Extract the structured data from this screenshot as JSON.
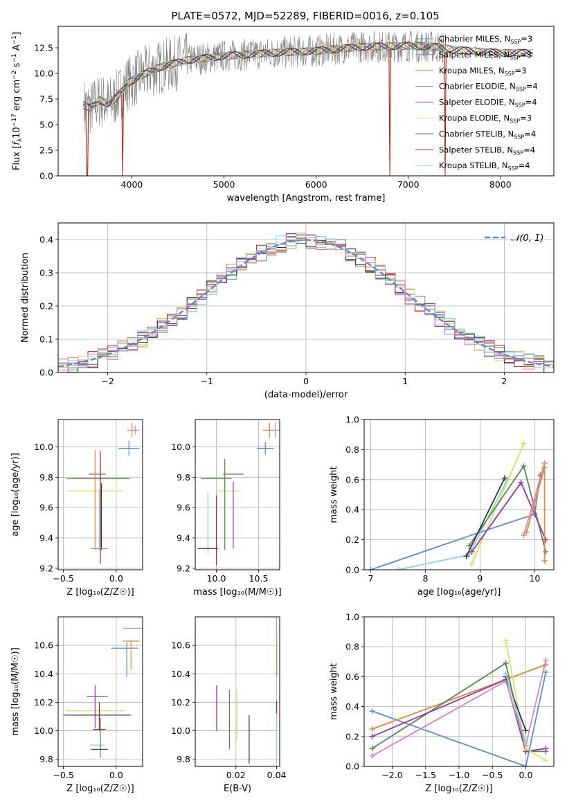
{
  "figure_title": "PLATE=0572, MJD=52289, FIBERID=0016, z=0.105",
  "chart_data": [
    {
      "type": "line",
      "panel": "spectrum",
      "xlabel": "wavelength [Angstrom, rest frame]",
      "ylabel_parts": [
        "Flux [",
        "f",
        "λ",
        "10",
        "−17",
        " erg cm",
        "−2",
        " s",
        "−1",
        " A",
        "−1",
        "]"
      ],
      "xlim": [
        3200,
        8580
      ],
      "ylim": [
        0,
        14.6
      ],
      "xticks": [
        4000,
        5000,
        6000,
        7000,
        8000
      ],
      "yticks": [
        0.0,
        2.5,
        5.0,
        7.5,
        10.0,
        12.5
      ],
      "continuum_x": [
        3450,
        3550,
        3650,
        3750,
        3850,
        3950,
        4100,
        4300,
        4600,
        5000,
        5500,
        6000,
        6500,
        7000,
        7300,
        7500,
        8000,
        8350
      ],
      "continuum_y": [
        7.0,
        6.6,
        7.4,
        7.0,
        7.8,
        9.0,
        9.8,
        10.6,
        11.3,
        11.7,
        12.0,
        12.2,
        12.6,
        12.7,
        12.6,
        12.3,
        12.0,
        12.0
      ],
      "legend": [
        {
          "model": "Chabrier MILES",
          "nssp": "3",
          "color": "#4c9bd0"
        },
        {
          "model": "Salpeter MILES",
          "nssp": "3",
          "color": "#5a7fbf"
        },
        {
          "model": "Kroupa MILES",
          "nssp": "3",
          "color": "#e08a2c"
        },
        {
          "model": "Chabrier ELODIE",
          "nssp": "4",
          "color": "#4e8a4e"
        },
        {
          "model": "Salpeter ELODIE",
          "nssp": "4",
          "color": "#9a2fb0"
        },
        {
          "model": "Kroupa ELODIE",
          "nssp": "3",
          "color": "#d7e35a"
        },
        {
          "model": "Chabrier STELIB",
          "nssp": "4",
          "color": "#333333"
        },
        {
          "model": "Salpeter STELIB",
          "nssp": "4",
          "color": "#b22020"
        },
        {
          "model": "Kroupa STELIB",
          "nssp": "4",
          "color": "#7fd6e0"
        }
      ]
    },
    {
      "type": "histogram",
      "panel": "residuals",
      "xlabel": "(data-model)/error",
      "ylabel": "Normed distribution",
      "xlim": [
        -2.5,
        2.5
      ],
      "ylim": [
        0,
        0.45
      ],
      "xticks": [
        -2,
        -1,
        0,
        1,
        2
      ],
      "xtick_labels": [
        "−2",
        "−1",
        "0",
        "1",
        "2"
      ],
      "yticks": [
        0.0,
        0.1,
        0.2,
        0.3,
        0.4
      ],
      "bin_width": 0.1,
      "series_colors": [
        "#4c9bd0",
        "#e08a2c",
        "#4e8a4e",
        "#9a2fb0",
        "#d7e35a",
        "#333333",
        "#b22020",
        "#7fd6e0",
        "#e57fb3"
      ],
      "gaussian_label": "𝒩(0, 1)",
      "gaussian_color": "#5b8bd6"
    },
    {
      "type": "errorbar",
      "panel": "age_vs_Z",
      "xlabel": "Z [log₁₀(Z/Z☉)]",
      "ylabel": "age  [log₁₀(age/yr)]",
      "xlim": [
        -0.55,
        0.25
      ],
      "ylim": [
        9.19,
        10.18
      ],
      "xticks": [
        -0.5,
        0.0
      ],
      "xtick_labels": [
        "−0.5",
        "0.0"
      ],
      "yticks": [
        9.2,
        9.4,
        9.6,
        9.8,
        10.0
      ],
      "ytick_labels": [
        "9.2",
        "9.4",
        "9.6",
        "9.8",
        "10.0"
      ],
      "points": [
        {
          "x": -0.17,
          "xerr": 0.3,
          "y": 9.79,
          "yerr": 0.0,
          "color": "#4e8a4e"
        },
        {
          "x": -0.2,
          "xerr": 0.26,
          "y": 9.71,
          "yerr": 0.0,
          "color": "#d7e35a"
        },
        {
          "x": -0.18,
          "xerr": 0.08,
          "y": 9.82,
          "yerr": 0.0,
          "color": "#9a2fb0"
        },
        {
          "x": -0.15,
          "xerr": 0.0,
          "y": 9.6,
          "yerr": 0.37,
          "color": "#b22020"
        },
        {
          "x": -0.14,
          "xerr": 0.0,
          "y": 9.54,
          "yerr": 0.22,
          "color": "#333333"
        },
        {
          "x": -0.2,
          "xerr": 0.0,
          "y": 9.65,
          "yerr": 0.33,
          "color": "#e08a2c"
        },
        {
          "x": -0.16,
          "xerr": 0.08,
          "y": 9.33,
          "yerr": 0.0,
          "color": "#4c9bd0"
        },
        {
          "x": -0.16,
          "xerr": 0.0,
          "y": 9.52,
          "yerr": 0.2,
          "color": "#7fd6e0"
        },
        {
          "x": 0.12,
          "xerr": 0.1,
          "y": 9.99,
          "yerr": 0.05,
          "color": "#5b8bd6"
        },
        {
          "x": 0.15,
          "xerr": 0.05,
          "y": 10.11,
          "yerr": 0.05,
          "color": "#e08a2c"
        },
        {
          "x": 0.18,
          "xerr": 0.04,
          "y": 10.11,
          "yerr": 0.03,
          "color": "#e57fb3"
        }
      ]
    },
    {
      "type": "errorbar",
      "panel": "age_vs_mass",
      "xlabel": "mass [log₁₀(M/M☉)]",
      "xlim": [
        9.75,
        10.75
      ],
      "ylim": [
        9.19,
        10.18
      ],
      "xticks": [
        10.0,
        10.5
      ],
      "xtick_labels": [
        "10.0",
        "10.5"
      ],
      "yticks": [
        9.2,
        9.4,
        9.6,
        9.8,
        10.0
      ],
      "ytick_labels": [
        "9.2",
        "9.4",
        "9.6",
        "9.8",
        "10.0"
      ],
      "points": [
        {
          "x": 10.0,
          "xerr": 0.18,
          "y": 9.79,
          "yerr": 0.0,
          "color": "#4e8a4e"
        },
        {
          "x": 10.1,
          "xerr": 0.0,
          "y": 9.6,
          "yerr": 0.25,
          "color": "#d7e35a"
        },
        {
          "x": 10.15,
          "xerr": 0.14,
          "y": 9.71,
          "yerr": 0.0,
          "color": "#d7e35a"
        },
        {
          "x": 10.2,
          "xerr": 0.12,
          "y": 9.82,
          "yerr": 0.0,
          "color": "#9a2fb0"
        },
        {
          "x": 10.2,
          "xerr": 0.0,
          "y": 9.55,
          "yerr": 0.22,
          "color": "#9a2fb0"
        },
        {
          "x": 10.0,
          "xerr": 0.0,
          "y": 9.45,
          "yerr": 0.23,
          "color": "#b22020"
        },
        {
          "x": 9.9,
          "xerr": 0.0,
          "y": 9.5,
          "yerr": 0.2,
          "color": "#7fd6e0"
        },
        {
          "x": 9.9,
          "xerr": 0.12,
          "y": 9.33,
          "yerr": 0.0,
          "color": "#333333"
        },
        {
          "x": 10.1,
          "xerr": 0.0,
          "y": 9.62,
          "yerr": 0.3,
          "color": "#4e8a4e"
        },
        {
          "x": 10.58,
          "xerr": 0.1,
          "y": 9.99,
          "yerr": 0.04,
          "color": "#5b8bd6"
        },
        {
          "x": 10.63,
          "xerr": 0.08,
          "y": 10.11,
          "yerr": 0.05,
          "color": "#e08a2c"
        },
        {
          "x": 10.7,
          "xerr": 0.05,
          "y": 10.11,
          "yerr": 0.05,
          "color": "#e57fb3"
        }
      ]
    },
    {
      "type": "line",
      "panel": "weight_vs_age",
      "xlabel": "age  [log₁₀(age/yr)]",
      "ylabel": "mass weight",
      "xlim": [
        6.88,
        10.35
      ],
      "ylim": [
        0,
        1.0
      ],
      "xticks": [
        7,
        8,
        9,
        10
      ],
      "xtick_labels": [
        "7",
        "8",
        "9",
        "10"
      ],
      "yticks": [
        0.0,
        0.2,
        0.4,
        0.6,
        0.8,
        1.0
      ],
      "ytick_labels": [
        "0.0",
        "0.2",
        "0.4",
        "0.6",
        "0.8",
        "1.0"
      ],
      "series": [
        {
          "color": "#5b8bd6",
          "x": [
            7.0,
            9.0,
            10.0,
            10.1
          ],
          "y": [
            0.0,
            0.25,
            0.37,
            0.63
          ]
        },
        {
          "color": "#7fd6e0",
          "x": [
            7.5,
            8.8,
            9.5
          ],
          "y": [
            0.0,
            0.1,
            0.6
          ]
        },
        {
          "color": "#d7e35a",
          "x": [
            8.85,
            9.8
          ],
          "y": [
            0.04,
            0.84
          ]
        },
        {
          "color": "#4e8a4e",
          "x": [
            8.8,
            9.8,
            10.2
          ],
          "y": [
            0.16,
            0.69,
            0.12
          ]
        },
        {
          "color": "#9a2fb0",
          "x": [
            8.85,
            9.75,
            10.2
          ],
          "y": [
            0.12,
            0.58,
            0.2
          ]
        },
        {
          "color": "#333333",
          "x": [
            8.75,
            9.45
          ],
          "y": [
            0.09,
            0.61
          ]
        },
        {
          "color": "#e57fb3",
          "x": [
            9.8,
            10.18
          ],
          "y": [
            0.23,
            0.71
          ]
        },
        {
          "color": "#e08a2c",
          "x": [
            9.85,
            10.18,
            10.18
          ],
          "y": [
            0.25,
            0.68,
            0.06
          ]
        }
      ]
    },
    {
      "type": "errorbar",
      "panel": "mass_vs_Z",
      "xlabel": "Z [log₁₀(Z/Z☉)]",
      "ylabel": "mass [log₁₀(M/M☉)]",
      "xlim": [
        -0.55,
        0.25
      ],
      "ylim": [
        9.75,
        10.8
      ],
      "xticks": [
        -0.5,
        0.0
      ],
      "xtick_labels": [
        "−0.5",
        "0.0"
      ],
      "yticks": [
        9.8,
        10.0,
        10.2,
        10.4,
        10.6
      ],
      "ytick_labels": [
        "9.8",
        "10.0",
        "10.2",
        "10.4",
        "10.6"
      ],
      "points": [
        {
          "x": -0.18,
          "xerr": 0.32,
          "y": 10.11,
          "yerr": 0.0,
          "color": "#333333"
        },
        {
          "x": -0.2,
          "xerr": 0.28,
          "y": 10.14,
          "yerr": 0.0,
          "color": "#d7e35a"
        },
        {
          "x": -0.18,
          "xerr": 0.1,
          "y": 10.24,
          "yerr": 0.0,
          "color": "#9a2fb0"
        },
        {
          "x": -0.2,
          "xerr": 0.0,
          "y": 10.17,
          "yerr": 0.15,
          "color": "#9a2fb0"
        },
        {
          "x": -0.16,
          "xerr": 0.06,
          "y": 10.01,
          "yerr": 0.0,
          "color": "#b22020"
        },
        {
          "x": -0.16,
          "xerr": 0.0,
          "y": 10.1,
          "yerr": 0.1,
          "color": "#b22020"
        },
        {
          "x": -0.16,
          "xerr": 0.08,
          "y": 9.87,
          "yerr": 0.0,
          "color": "#333333"
        },
        {
          "x": -0.18,
          "xerr": 0.07,
          "y": 9.9,
          "yerr": 0.0,
          "color": "#7fd6e0"
        },
        {
          "x": -0.15,
          "xerr": 0.0,
          "y": 9.95,
          "yerr": 0.14,
          "color": "#4e8a4e"
        },
        {
          "x": 0.08,
          "xerr": 0.13,
          "y": 10.58,
          "yerr": 0.0,
          "color": "#5b8bd6"
        },
        {
          "x": 0.1,
          "xerr": 0.0,
          "y": 10.5,
          "yerr": 0.12,
          "color": "#5b8bd6"
        },
        {
          "x": 0.14,
          "xerr": 0.08,
          "y": 10.63,
          "yerr": 0.0,
          "color": "#e08a2c"
        },
        {
          "x": 0.14,
          "xerr": 0.0,
          "y": 10.53,
          "yerr": 0.1,
          "color": "#e08a2c"
        },
        {
          "x": 0.16,
          "xerr": 0.1,
          "y": 10.72,
          "yerr": 0.0,
          "color": "#e57fb3"
        }
      ]
    },
    {
      "type": "errorbar",
      "panel": "mass_vs_ebv",
      "xlabel": "E(B-V)",
      "xlim": [
        0.0,
        0.0415
      ],
      "ylim": [
        9.75,
        10.8
      ],
      "xticks": [
        0.02,
        0.04
      ],
      "xtick_labels": [
        "0.02",
        "0.04"
      ],
      "yticks": [
        9.8,
        10.0,
        10.2,
        10.4,
        10.6
      ],
      "ytick_labels": [
        "9.8",
        "10.0",
        "10.2",
        "10.4",
        "10.6"
      ],
      "points": [
        {
          "x": 0.0105,
          "xerr": 0.0,
          "y": 10.16,
          "yerr": 0.16,
          "color": "#9a2fb0"
        },
        {
          "x": 0.0168,
          "xerr": 0.0,
          "y": 10.08,
          "yerr": 0.21,
          "color": "#4e8a4e"
        },
        {
          "x": 0.0205,
          "xerr": 0.0,
          "y": 10.11,
          "yerr": 0.18,
          "color": "#d7e35a"
        },
        {
          "x": 0.0265,
          "xerr": 0.0,
          "y": 9.94,
          "yerr": 0.17,
          "color": "#333333"
        },
        {
          "x": 0.04,
          "xerr": 0.0,
          "y": 10.6,
          "yerr": 0.2,
          "color": "#e57fb3"
        },
        {
          "x": 0.04,
          "xerr": 0.0,
          "y": 10.53,
          "yerr": 0.12,
          "color": "#e08a2c"
        },
        {
          "x": 0.04,
          "xerr": 0.0,
          "y": 10.15,
          "yerr": 0.06,
          "color": "#b22020"
        },
        {
          "x": 0.04,
          "xerr": 0.0,
          "y": 10.4,
          "yerr": 0.02,
          "color": "#5b8bd6"
        },
        {
          "x": 0.04,
          "xerr": 0.0,
          "y": 9.97,
          "yerr": 0.15,
          "color": "#7fd6e0"
        }
      ]
    },
    {
      "type": "line",
      "panel": "weight_vs_Z",
      "xlabel": "Z [log₁₀(Z/Z☉)]",
      "ylabel": "mass weight",
      "xlim": [
        -2.42,
        0.42
      ],
      "ylim": [
        0,
        1.0
      ],
      "xticks": [
        -2.0,
        -1.5,
        -1.0,
        -0.5,
        0.0
      ],
      "xtick_labels": [
        "−2.0",
        "−1.5",
        "−1.0",
        "−0.5",
        "0.0"
      ],
      "yticks": [
        0.0,
        0.2,
        0.4,
        0.6,
        0.8,
        1.0
      ],
      "ytick_labels": [
        "0.0",
        "0.2",
        "0.4",
        "0.6",
        "0.8",
        "1.0"
      ],
      "series": [
        {
          "color": "#5b8bd6",
          "x": [
            -2.3,
            0.0,
            0.3
          ],
          "y": [
            0.37,
            0.0,
            0.63
          ]
        },
        {
          "color": "#e08a2c",
          "x": [
            -2.3,
            0.3
          ],
          "y": [
            0.25,
            0.68
          ]
        },
        {
          "color": "#4e8a4e",
          "x": [
            -2.3,
            -0.3,
            0.0,
            0.3
          ],
          "y": [
            0.12,
            0.69,
            0.1,
            0.1
          ]
        },
        {
          "color": "#9a2fb0",
          "x": [
            -2.3,
            -0.3,
            0.0,
            0.3
          ],
          "y": [
            0.2,
            0.58,
            0.1,
            0.12
          ]
        },
        {
          "color": "#e57fb3",
          "x": [
            -2.3,
            -0.3,
            0.0,
            0.3
          ],
          "y": [
            0.07,
            0.57,
            0.14,
            0.71
          ]
        },
        {
          "color": "#d7e35a",
          "x": [
            -0.3,
            0.0,
            0.3
          ],
          "y": [
            0.84,
            0.12,
            0.04
          ]
        },
        {
          "color": "#333333",
          "x": [
            -0.3,
            0.0
          ],
          "y": [
            0.6,
            0.24
          ]
        },
        {
          "color": "#7fd6e0",
          "x": [
            -0.3,
            0.0
          ],
          "y": [
            0.62,
            0.16
          ]
        }
      ]
    }
  ]
}
